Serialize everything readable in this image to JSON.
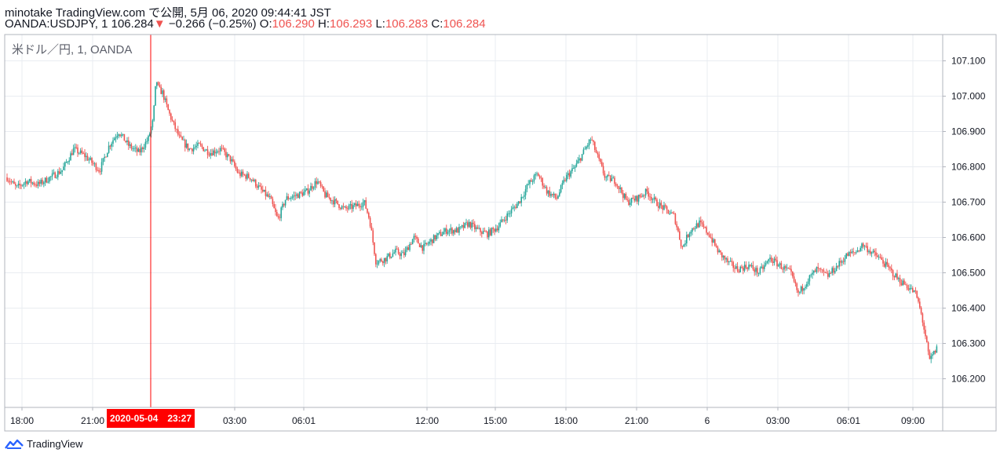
{
  "header": {
    "line1": "minotake TradingView.com で公開, 5月 06, 2020 09:44:41 JST",
    "symbol": "OANDA:USDJPY, 1",
    "last": "106.284",
    "arrow": "▼",
    "change": "−0.266 (−0.25%)",
    "o_label": "O:",
    "o_value": "106.290",
    "h_label": "H:",
    "h_value": "106.293",
    "l_label": "L:",
    "l_value": "106.283",
    "c_label": "C:",
    "c_value": "106.284"
  },
  "footer": {
    "brand": "TradingView",
    "icon": "tradingview-logo-icon"
  },
  "colors": {
    "up": "#26a69a",
    "down": "#ef5350",
    "crosshair": "#ff0000",
    "grid": "#e9ecf1"
  },
  "chart_data": {
    "type": "candlestick",
    "title": "米ドル／円, 1, OANDA",
    "ylim": [
      106.11,
      107.17
    ],
    "y_ticks": [
      "107.100",
      "107.000",
      "106.900",
      "106.800",
      "106.700",
      "106.600",
      "106.500",
      "106.400",
      "106.300",
      "106.200"
    ],
    "x_ticks": [
      "18:00",
      "21:00",
      "03:00",
      "06:01",
      "12:00",
      "15:00",
      "18:00",
      "21:00",
      "6",
      "03:00",
      "06:01",
      "09:00"
    ],
    "crosshair_label": "2020-05-04　23:27",
    "price_path": [
      [
        0,
        106.77
      ],
      [
        12,
        106.74
      ],
      [
        25,
        106.76
      ],
      [
        40,
        106.75
      ],
      [
        55,
        106.77
      ],
      [
        70,
        106.79
      ],
      [
        85,
        106.85
      ],
      [
        100,
        106.83
      ],
      [
        118,
        106.79
      ],
      [
        130,
        106.86
      ],
      [
        142,
        106.9
      ],
      [
        155,
        106.86
      ],
      [
        168,
        106.84
      ],
      [
        180,
        106.88
      ],
      [
        186,
        106.93
      ],
      [
        190,
        107.05
      ],
      [
        193,
        107.02
      ],
      [
        198,
        107.01
      ],
      [
        205,
        106.96
      ],
      [
        212,
        106.92
      ],
      [
        220,
        106.88
      ],
      [
        232,
        106.85
      ],
      [
        245,
        106.86
      ],
      [
        258,
        106.84
      ],
      [
        272,
        106.85
      ],
      [
        285,
        106.82
      ],
      [
        295,
        106.78
      ],
      [
        310,
        106.77
      ],
      [
        325,
        106.73
      ],
      [
        335,
        106.71
      ],
      [
        345,
        106.65
      ],
      [
        355,
        106.71
      ],
      [
        370,
        106.72
      ],
      [
        382,
        106.73
      ],
      [
        395,
        106.76
      ],
      [
        405,
        106.72
      ],
      [
        418,
        106.7
      ],
      [
        430,
        106.68
      ],
      [
        445,
        106.69
      ],
      [
        455,
        106.7
      ],
      [
        462,
        106.65
      ],
      [
        470,
        106.53
      ],
      [
        482,
        106.54
      ],
      [
        495,
        106.56
      ],
      [
        505,
        106.55
      ],
      [
        518,
        106.6
      ],
      [
        530,
        106.57
      ],
      [
        545,
        106.6
      ],
      [
        560,
        106.62
      ],
      [
        575,
        106.62
      ],
      [
        588,
        106.64
      ],
      [
        600,
        106.62
      ],
      [
        612,
        106.61
      ],
      [
        625,
        106.63
      ],
      [
        640,
        106.67
      ],
      [
        652,
        106.7
      ],
      [
        664,
        106.75
      ],
      [
        676,
        106.78
      ],
      [
        688,
        106.73
      ],
      [
        700,
        106.71
      ],
      [
        712,
        106.77
      ],
      [
        724,
        106.8
      ],
      [
        734,
        106.84
      ],
      [
        744,
        106.88
      ],
      [
        752,
        106.83
      ],
      [
        762,
        106.77
      ],
      [
        775,
        106.76
      ],
      [
        790,
        106.7
      ],
      [
        802,
        106.71
      ],
      [
        815,
        106.73
      ],
      [
        826,
        106.7
      ],
      [
        838,
        106.68
      ],
      [
        850,
        106.66
      ],
      [
        860,
        106.57
      ],
      [
        870,
        106.62
      ],
      [
        882,
        106.64
      ],
      [
        894,
        106.61
      ],
      [
        906,
        106.56
      ],
      [
        918,
        106.53
      ],
      [
        930,
        106.51
      ],
      [
        945,
        106.52
      ],
      [
        958,
        106.5
      ],
      [
        972,
        106.54
      ],
      [
        985,
        106.52
      ],
      [
        998,
        106.5
      ],
      [
        1008,
        106.44
      ],
      [
        1020,
        106.48
      ],
      [
        1032,
        106.51
      ],
      [
        1045,
        106.49
      ],
      [
        1058,
        106.52
      ],
      [
        1070,
        106.55
      ],
      [
        1082,
        106.56
      ],
      [
        1090,
        106.58
      ],
      [
        1100,
        106.56
      ],
      [
        1112,
        106.54
      ],
      [
        1124,
        106.51
      ],
      [
        1136,
        106.48
      ],
      [
        1148,
        106.46
      ],
      [
        1158,
        106.44
      ],
      [
        1165,
        106.38
      ],
      [
        1170,
        106.32
      ],
      [
        1175,
        106.25
      ],
      [
        1180,
        106.27
      ],
      [
        1186,
        106.29
      ]
    ]
  }
}
